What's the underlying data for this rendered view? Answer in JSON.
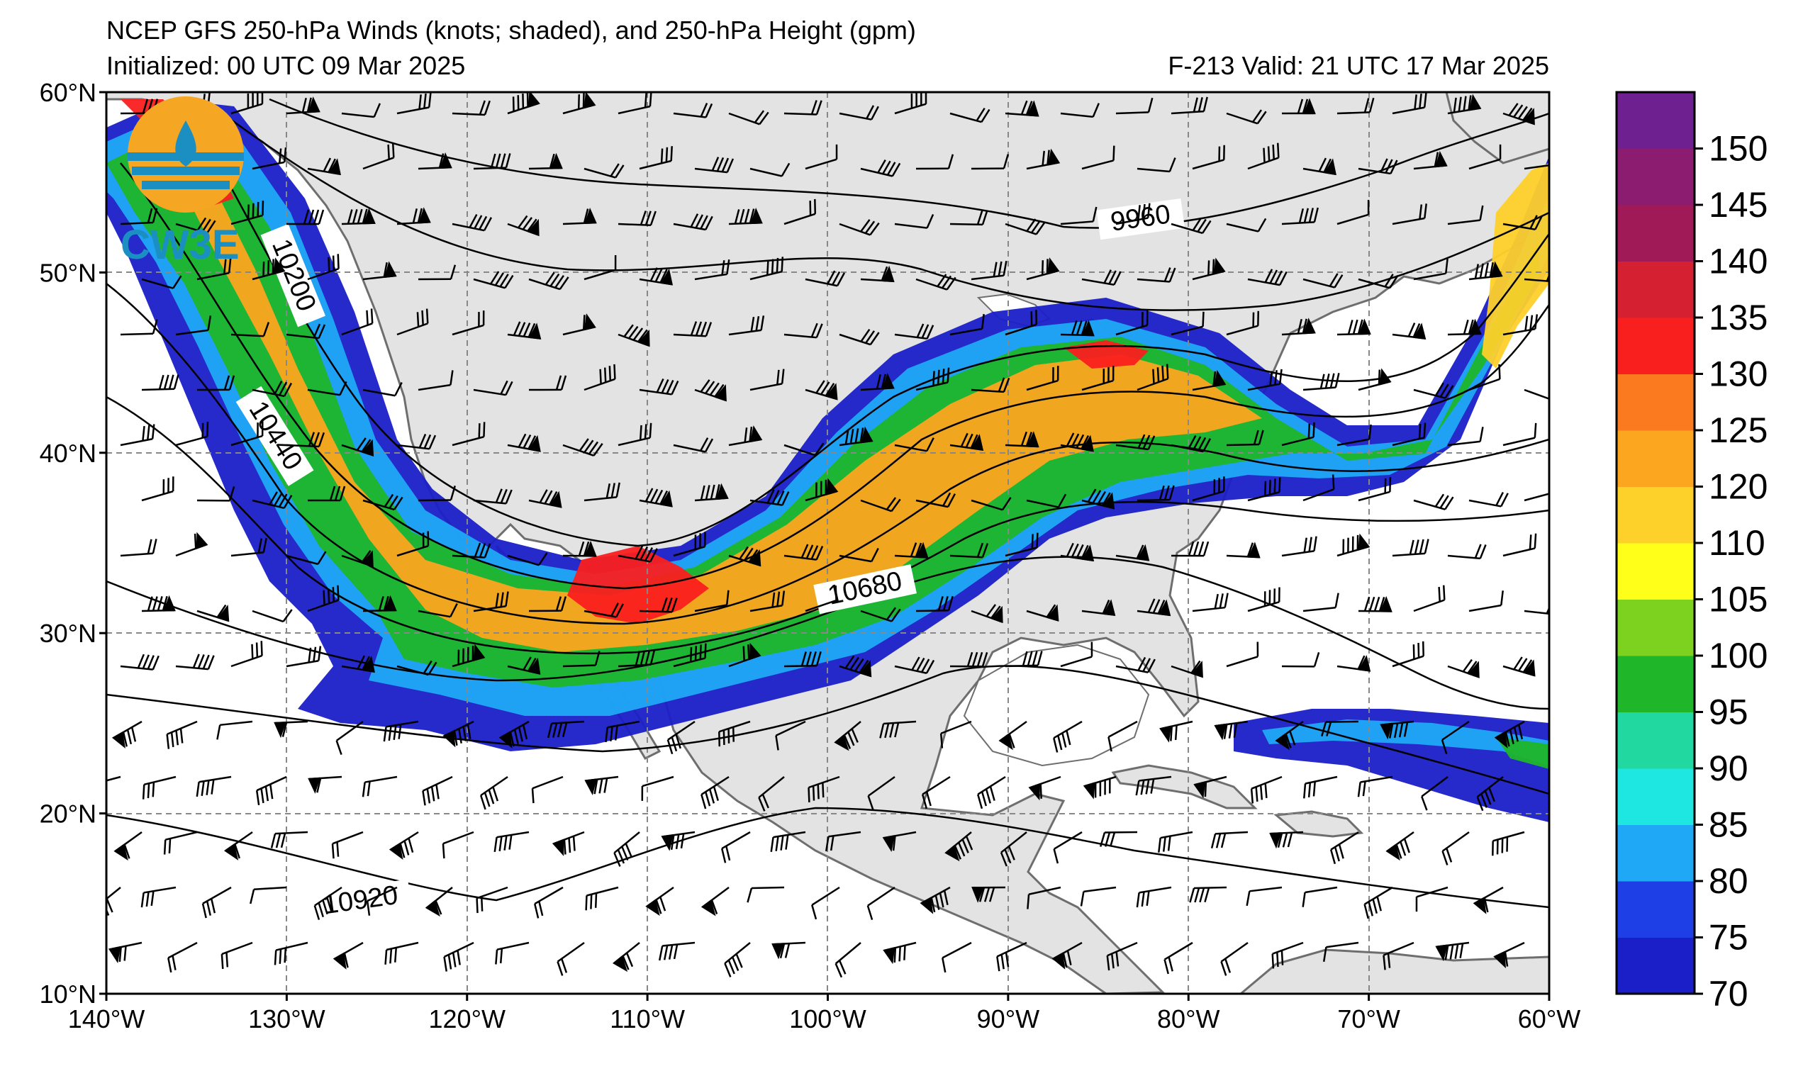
{
  "header": {
    "title": "NCEP GFS 250-hPa Winds (knots; shaded), and 250-hPa Height (gpm)",
    "initialized": "Initialized: 00 UTC 09 Mar 2025",
    "valid": "F-213  Valid: 21 UTC 17 Mar 2025"
  },
  "logo": {
    "text": "CW3E"
  },
  "map": {
    "lon_range": [
      -140,
      -60
    ],
    "lat_range": [
      10,
      60
    ],
    "lon_ticks": [
      "140°W",
      "130°W",
      "120°W",
      "110°W",
      "100°W",
      "90°W",
      "80°W",
      "70°W",
      "60°W"
    ],
    "lat_ticks": [
      "60°N",
      "50°N",
      "40°N",
      "30°N",
      "20°N",
      "10°N"
    ],
    "grid": true,
    "land_color": "#e3e3e3",
    "ocean_color": "#ffffff"
  },
  "contour_labels": [
    "9960",
    "10200",
    "10440",
    "10680",
    "10920"
  ],
  "colorbar": {
    "ticks": [
      "70",
      "75",
      "80",
      "85",
      "90",
      "95",
      "100",
      "105",
      "110",
      "120",
      "125",
      "130",
      "135",
      "140",
      "145",
      "150"
    ],
    "colors": [
      "#1a1fc8",
      "#1f3fe6",
      "#1fa8f5",
      "#1ee6e0",
      "#20d8a0",
      "#1fb62a",
      "#7cd21f",
      "#ffff1a",
      "#fed02a",
      "#fca51f",
      "#fb7a1f",
      "#fa1f1f",
      "#d42030",
      "#a01a58",
      "#8b1c70",
      "#6e2090"
    ]
  }
}
